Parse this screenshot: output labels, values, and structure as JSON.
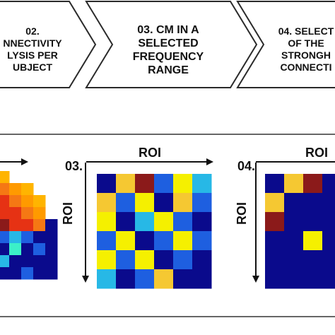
{
  "steps": {
    "step2": {
      "lines": [
        "02.",
        "NNECTIVITY",
        "LYSIS PER",
        "UBJECT"
      ]
    },
    "step3": {
      "lines": [
        "03. CM IN A",
        "SELECTED",
        "FREQUENCY",
        "RANGE"
      ]
    },
    "step4": {
      "lines": [
        "04. SELECT",
        "OF THE",
        "STRONGH",
        "CONNECTI"
      ]
    }
  },
  "panels": {
    "panel3": {
      "number": "03.",
      "axis_top": "ROI",
      "axis_side": "ROI"
    },
    "panel4": {
      "number": "04.",
      "axis_top": "ROI",
      "axis_side": "ROI"
    }
  },
  "colors": {
    "navy": "#0a0a8c",
    "blue": "#1e5fe0",
    "cyan": "#27b8e6",
    "teal": "#3cf0c8",
    "yellow": "#f5f000",
    "gold": "#f5c832",
    "maroon": "#8b1a1a",
    "orange": "#f57814",
    "red": "#e63214",
    "bright_orange": "#ff9a00",
    "amber": "#ffb400"
  },
  "matrices": {
    "matrix3": [
      [
        "navy",
        "gold",
        "maroon",
        "blue",
        "yellow",
        "cyan"
      ],
      [
        "gold",
        "blue",
        "yellow",
        "navy",
        "gold",
        "blue"
      ],
      [
        "yellow",
        "navy",
        "cyan",
        "yellow",
        "blue",
        "navy"
      ],
      [
        "blue",
        "yellow",
        "navy",
        "blue",
        "yellow",
        "blue"
      ],
      [
        "yellow",
        "blue",
        "yellow",
        "navy",
        "blue",
        "navy"
      ],
      [
        "cyan",
        "navy",
        "blue",
        "gold",
        "navy",
        "navy"
      ]
    ],
    "matrix4": [
      [
        "navy",
        "gold",
        "maroon",
        "navy"
      ],
      [
        "gold",
        "navy",
        "navy",
        "navy"
      ],
      [
        "maroon",
        "navy",
        "navy",
        "navy"
      ],
      [
        "navy",
        "navy",
        "yellow",
        "navy"
      ],
      [
        "navy",
        "navy",
        "navy",
        "navy"
      ],
      [
        "navy",
        "navy",
        "navy",
        "navy"
      ]
    ],
    "matrix2": [
      [
        "amber",
        "white",
        "white",
        "white",
        "white"
      ],
      [
        "orange",
        "bright_orange",
        "amber",
        "white",
        "white"
      ],
      [
        "red",
        "orange",
        "bright_orange",
        "amber",
        "white"
      ],
      [
        "red",
        "red",
        "orange",
        "bright_orange",
        "white"
      ],
      [
        "maroon",
        "red",
        "red",
        "orange",
        "navy"
      ],
      [
        "blue",
        "cyan",
        "blue",
        "navy",
        "navy"
      ],
      [
        "navy",
        "teal",
        "navy",
        "blue",
        "navy"
      ],
      [
        "cyan",
        "navy",
        "navy",
        "navy",
        "navy"
      ],
      [
        "navy",
        "navy",
        "blue",
        "navy",
        "navy"
      ]
    ]
  }
}
